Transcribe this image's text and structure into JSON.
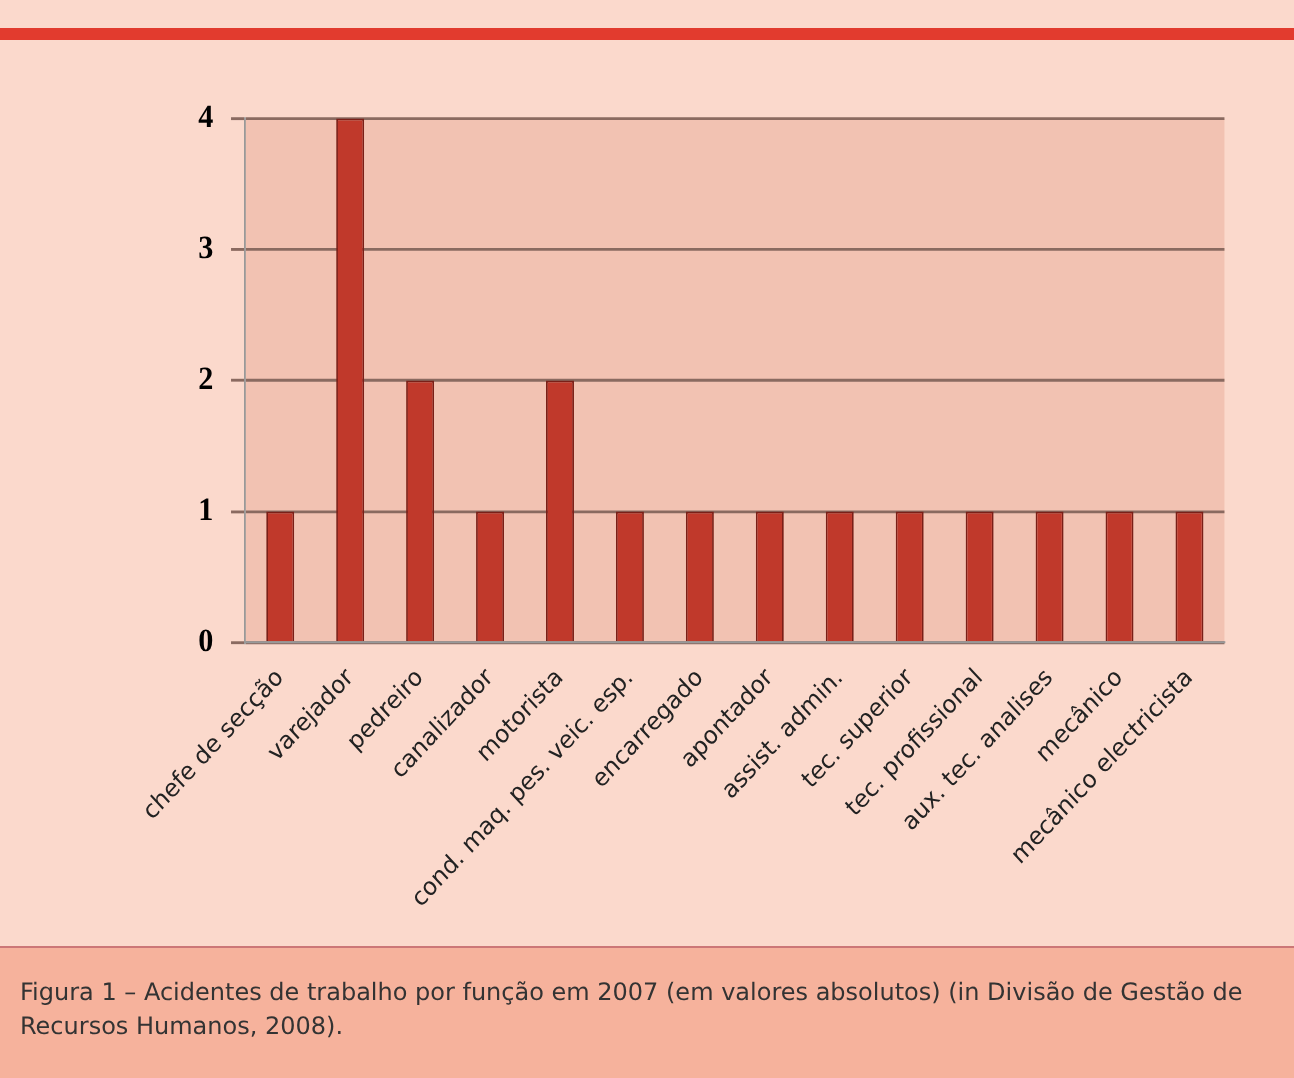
{
  "chart_data": {
    "type": "bar",
    "categories": [
      "chefe de secção",
      "varejador",
      "pedreiro",
      "canalizador",
      "motorista",
      "cond. maq. pes. veic. esp.",
      "encarregado",
      "apontador",
      "assist. admin.",
      "tec. superior",
      "tec. profissional",
      "aux. tec. analises",
      "mecânico",
      "mecânico electricista"
    ],
    "values": [
      1,
      4,
      2,
      1,
      2,
      1,
      1,
      1,
      1,
      1,
      1,
      1,
      1,
      1
    ],
    "color": "#c0392b",
    "ylim": [
      0,
      4
    ],
    "yticks": [
      0,
      1,
      2,
      3,
      4
    ],
    "grid": "y",
    "annotations": [
      "Figura 1 – Acidentes de trabalho por função em 2007 (em valores absolutos) (in Divisão de Gestão de Recursos Humanos, 2008)."
    ]
  }
}
